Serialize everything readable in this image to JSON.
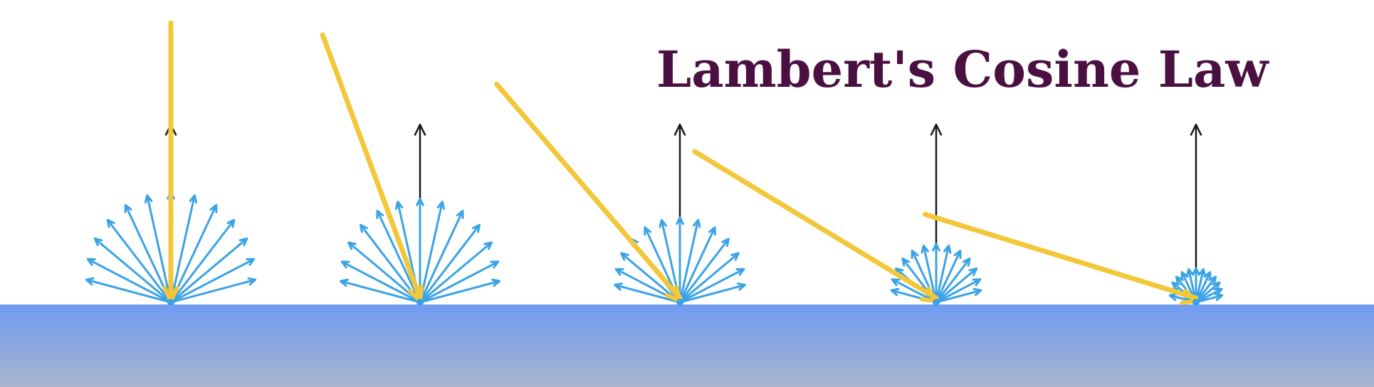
{
  "title": "Lambert's Cosine Law",
  "colors": {
    "title": "#4a1041",
    "surface_top": "#6f9bf2",
    "surface_bottom": "#a8b5cc",
    "incident_ray": "#f3c73a",
    "reflected_rays": "#3aa3e6",
    "normal": "#1a1a1a",
    "background": "#ffffff"
  },
  "diagram": {
    "surface": "flat horizontal surface with gradient",
    "scenarios": [
      {
        "incidence_angle_deg": 0,
        "relative_intensity": 1.0
      },
      {
        "incidence_angle_deg": 20,
        "relative_intensity": 0.94
      },
      {
        "incidence_angle_deg": 40,
        "relative_intensity": 0.77
      },
      {
        "incidence_angle_deg": 58,
        "relative_intensity": 0.53
      },
      {
        "incidence_angle_deg": 72,
        "relative_intensity": 0.31
      }
    ],
    "reflected_rays_per_point": 13
  }
}
